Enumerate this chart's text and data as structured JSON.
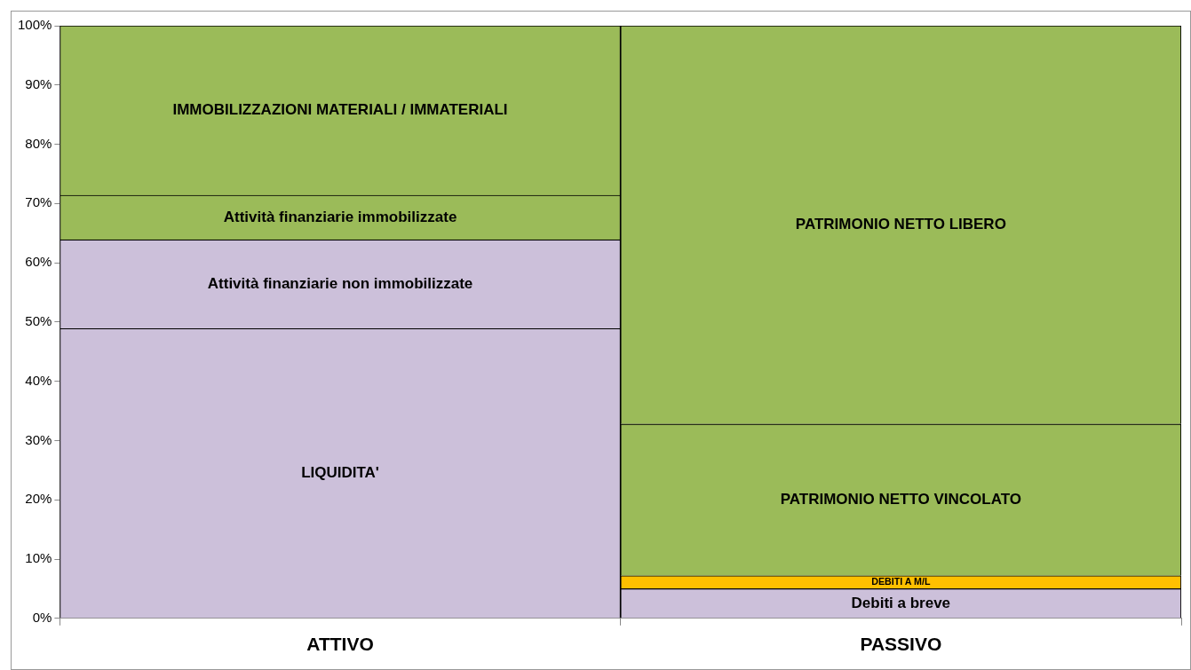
{
  "chart_data": {
    "type": "bar",
    "stacked": true,
    "categories": [
      "ATTIVO",
      "PASSIVO"
    ],
    "series": [
      {
        "name": "LIQUIDITA'",
        "color": "#ccc0da",
        "values": [
          48.9,
          null
        ]
      },
      {
        "name": "Attività finanziarie non immobilizzate",
        "color": "#ccc0da",
        "values": [
          15.0,
          null
        ]
      },
      {
        "name": "Attività finanziarie immobilizzate",
        "color": "#9bbb59",
        "values": [
          7.5,
          null
        ]
      },
      {
        "name": "IMMOBILIZZAZIONI MATERIALI / IMMATERIALI",
        "color": "#9bbb59",
        "values": [
          28.6,
          null
        ]
      },
      {
        "name": "Debiti a breve",
        "color": "#ccc0da",
        "values": [
          null,
          5.0
        ]
      },
      {
        "name": "DEBITI A M/L",
        "color": "#ffc000",
        "values": [
          null,
          2.2
        ]
      },
      {
        "name": "PATRIMONIO NETTO VINCOLATO",
        "color": "#9bbb59",
        "values": [
          null,
          25.6
        ]
      },
      {
        "name": "PATRIMONIO NETTO LIBERO",
        "color": "#9bbb59",
        "values": [
          null,
          67.2
        ]
      }
    ],
    "ylim": [
      0,
      100
    ],
    "yticks": [
      {
        "value": 0,
        "label": "0%"
      },
      {
        "value": 10,
        "label": "10%"
      },
      {
        "value": 20,
        "label": "20%"
      },
      {
        "value": 30,
        "label": "30%"
      },
      {
        "value": 40,
        "label": "40%"
      },
      {
        "value": 50,
        "label": "50%"
      },
      {
        "value": 60,
        "label": "60%"
      },
      {
        "value": 70,
        "label": "70%"
      },
      {
        "value": 80,
        "label": "80%"
      },
      {
        "value": 90,
        "label": "90%"
      },
      {
        "value": 100,
        "label": "100%"
      }
    ],
    "grid": false,
    "legend": false
  }
}
